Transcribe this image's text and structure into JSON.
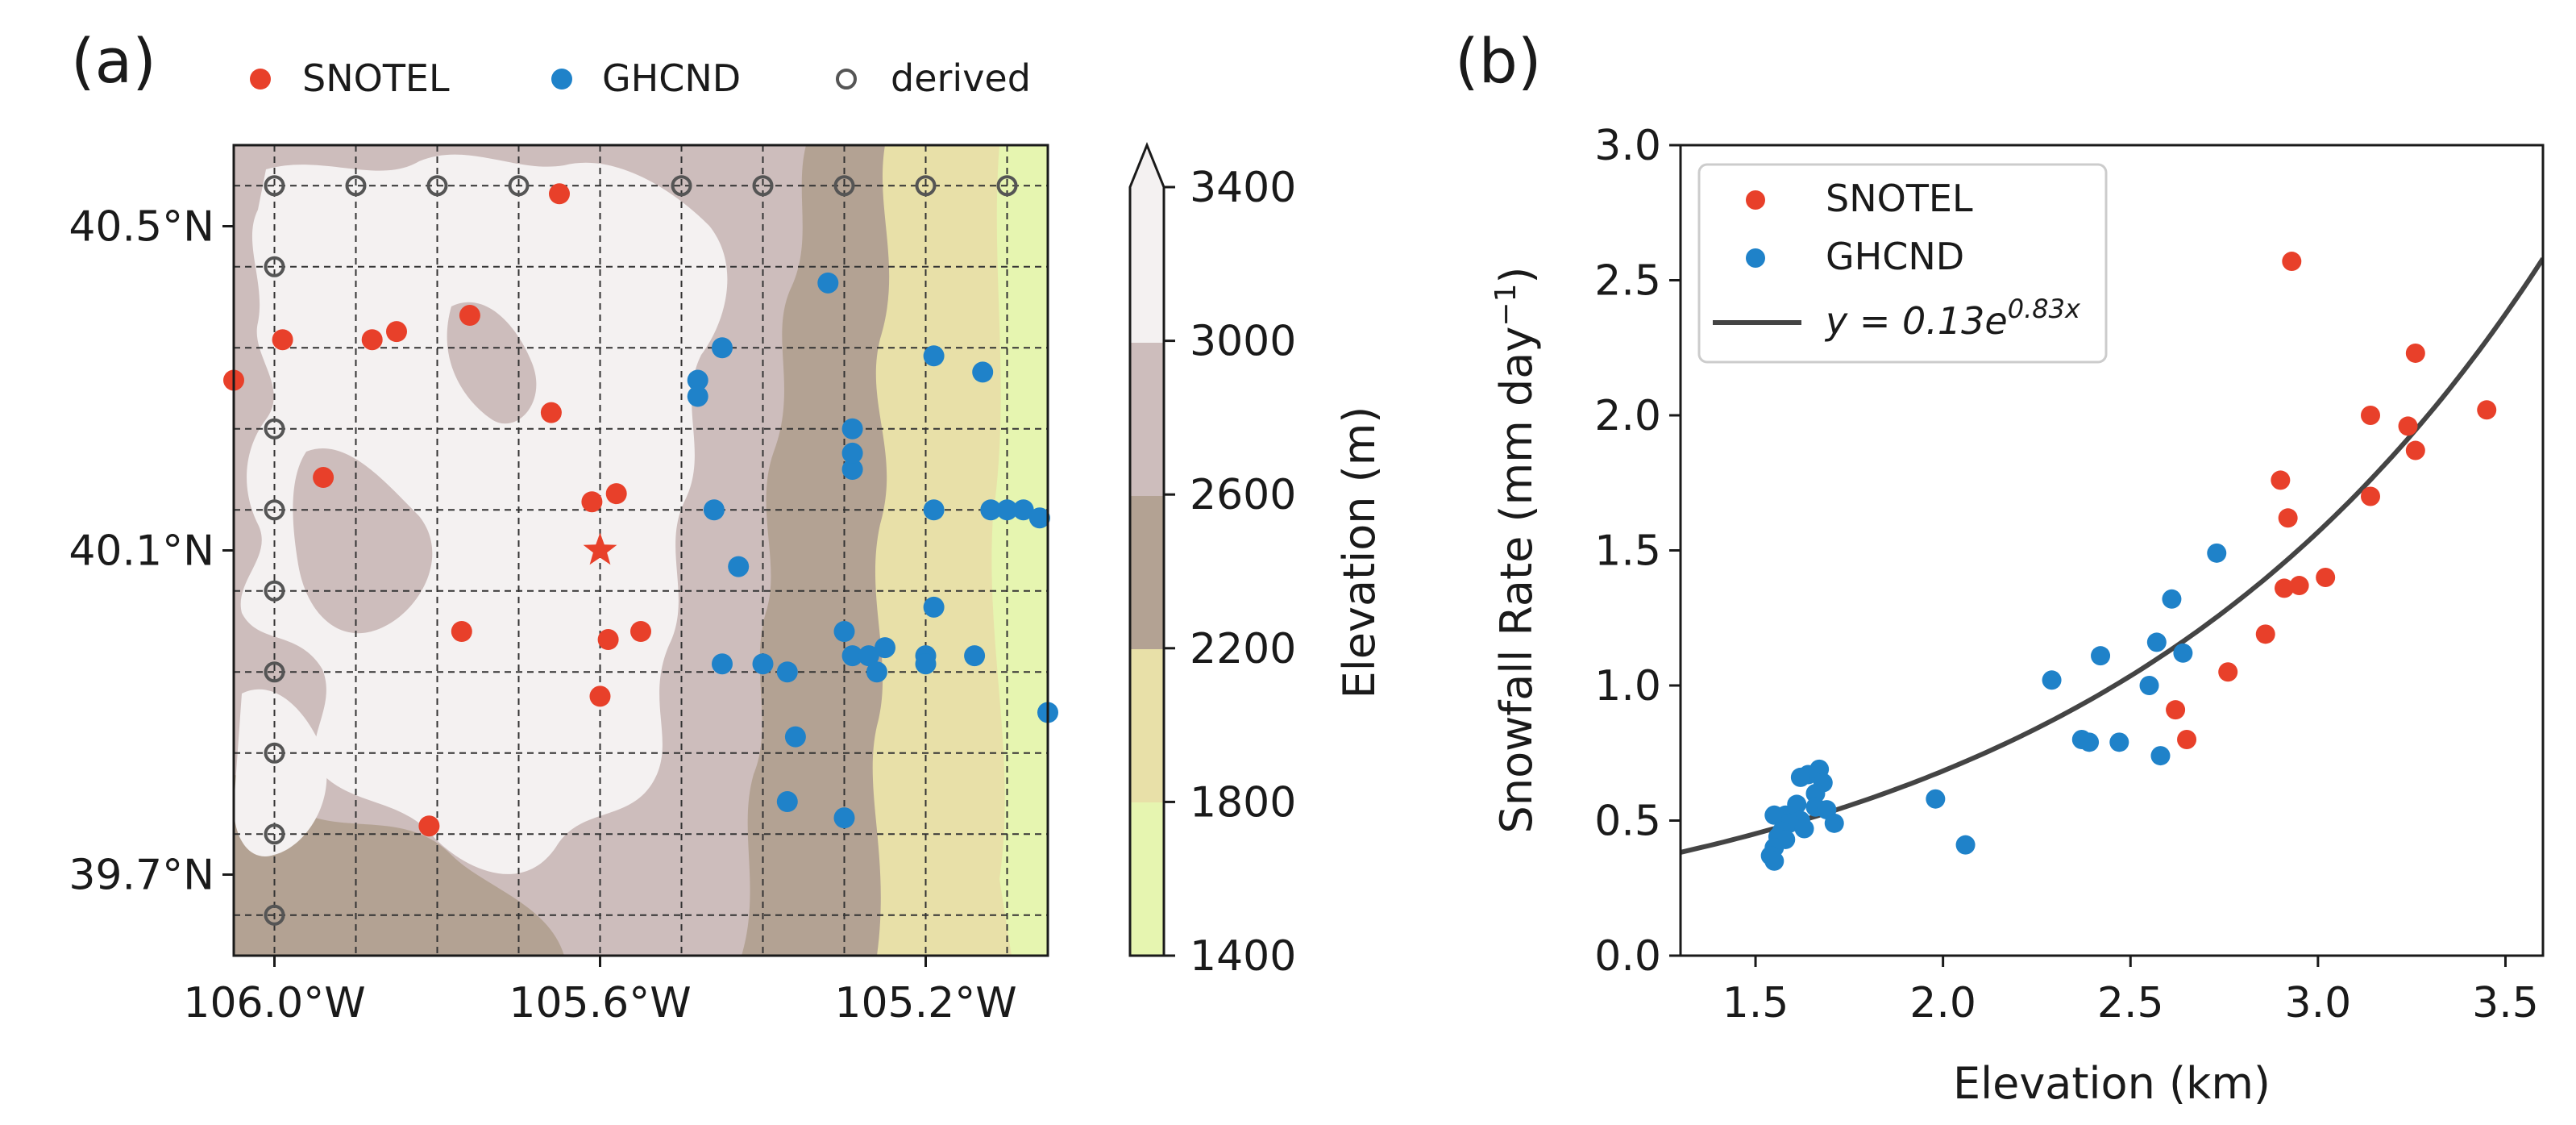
{
  "colors": {
    "snotel": "#e8402a",
    "ghcnd": "#1f82c9",
    "derived_edge": "#555555",
    "fit": "#444444",
    "elev_bands": [
      "#e6f5b0",
      "#e8e0a8",
      "#b3a293",
      "#cdbdbc",
      "#f4f1f1"
    ]
  },
  "chart_data": [
    {
      "type": "scatter",
      "panel_label": "(a)",
      "legend": [
        "SNOTEL",
        "GHCND",
        "derived"
      ],
      "xlabel": "",
      "ylabel": "",
      "xlim": [
        -106.05,
        -105.05
      ],
      "ylim": [
        39.6,
        40.6
      ],
      "xticks": [
        {
          "value": -106.0,
          "label": "106.0°W"
        },
        {
          "value": -105.6,
          "label": "105.6°W"
        },
        {
          "value": -105.2,
          "label": "105.2°W"
        }
      ],
      "yticks": [
        {
          "value": 40.5,
          "label": "40.5°N"
        },
        {
          "value": 40.1,
          "label": "40.1°N"
        },
        {
          "value": 39.7,
          "label": "39.7°N"
        }
      ],
      "grid": true,
      "grid_step": 0.1,
      "colorbar": {
        "label": "Elevation (m)",
        "ticks": [
          "1400",
          "1800",
          "2200",
          "2600",
          "3000",
          "3400"
        ],
        "range": [
          1400,
          3400
        ],
        "extend": "max"
      },
      "star": {
        "lon": -105.6,
        "lat": 40.1
      },
      "snotel": [
        [
          -105.65,
          40.54
        ],
        [
          -105.99,
          40.36
        ],
        [
          -105.88,
          40.36
        ],
        [
          -105.85,
          40.37
        ],
        [
          -105.76,
          40.39
        ],
        [
          -106.05,
          40.31
        ],
        [
          -105.66,
          40.27
        ],
        [
          -105.94,
          40.19
        ],
        [
          -105.61,
          40.16
        ],
        [
          -105.58,
          40.17
        ],
        [
          -105.6,
          39.92
        ],
        [
          -105.77,
          40.0
        ],
        [
          -105.59,
          39.99
        ],
        [
          -105.55,
          40.0
        ],
        [
          -105.81,
          39.76
        ]
      ],
      "ghcnd": [
        [
          -105.32,
          40.43
        ],
        [
          -105.45,
          40.35
        ],
        [
          -105.48,
          40.31
        ],
        [
          -105.48,
          40.29
        ],
        [
          -105.29,
          40.25
        ],
        [
          -105.29,
          40.2
        ],
        [
          -105.29,
          40.22
        ],
        [
          -105.19,
          40.34
        ],
        [
          -105.13,
          40.32
        ],
        [
          -105.19,
          40.15
        ],
        [
          -105.12,
          40.15
        ],
        [
          -105.1,
          40.15
        ],
        [
          -105.08,
          40.15
        ],
        [
          -105.46,
          40.15
        ],
        [
          -105.43,
          40.08
        ],
        [
          -105.45,
          39.96
        ],
        [
          -105.4,
          39.96
        ],
        [
          -105.37,
          39.95
        ],
        [
          -105.36,
          39.87
        ],
        [
          -105.37,
          39.79
        ],
        [
          -105.19,
          40.03
        ],
        [
          -105.3,
          40.0
        ],
        [
          -105.29,
          39.97
        ],
        [
          -105.27,
          39.97
        ],
        [
          -105.26,
          39.95
        ],
        [
          -105.25,
          39.98
        ],
        [
          -105.2,
          39.97
        ],
        [
          -105.2,
          39.96
        ],
        [
          -105.14,
          39.97
        ],
        [
          -105.05,
          39.9
        ],
        [
          -105.3,
          39.77
        ],
        [
          -105.06,
          40.14
        ]
      ],
      "derived": [
        [
          -106.0,
          40.55
        ],
        [
          -105.9,
          40.55
        ],
        [
          -105.8,
          40.55
        ],
        [
          -105.7,
          40.55
        ],
        [
          -105.5,
          40.55
        ],
        [
          -105.4,
          40.55
        ],
        [
          -105.3,
          40.55
        ],
        [
          -105.2,
          40.55
        ],
        [
          -105.1,
          40.55
        ],
        [
          -106.0,
          40.45
        ],
        [
          -106.0,
          40.25
        ],
        [
          -106.0,
          40.15
        ],
        [
          -106.0,
          40.05
        ],
        [
          -106.0,
          39.95
        ],
        [
          -106.0,
          39.85
        ],
        [
          -106.0,
          39.75
        ],
        [
          -106.0,
          39.65
        ]
      ]
    },
    {
      "type": "scatter",
      "panel_label": "(b)",
      "title": "",
      "xlabel": "Elevation (km)",
      "ylabel": "Snowfall Rate (mm day",
      "ylabel_sup": "−1",
      "ylabel_close": ")",
      "xlim": [
        1.3,
        3.6
      ],
      "ylim": [
        0.0,
        3.0
      ],
      "xticks": [
        "1.5",
        "2.0",
        "2.5",
        "3.0",
        "3.5"
      ],
      "yticks": [
        "0.0",
        "0.5",
        "1.0",
        "1.5",
        "2.0",
        "2.5",
        "3.0"
      ],
      "grid": false,
      "legend_position": "top-left",
      "fit": {
        "a": 0.13,
        "b": 0.83,
        "label_pre": "y = 0.13e",
        "label_exp": "0.83x"
      },
      "series": [
        {
          "name": "SNOTEL",
          "points": [
            [
              2.93,
              2.57
            ],
            [
              3.26,
              2.23
            ],
            [
              3.45,
              2.02
            ],
            [
              3.14,
              2.0
            ],
            [
              3.24,
              1.96
            ],
            [
              3.26,
              1.87
            ],
            [
              2.9,
              1.76
            ],
            [
              3.14,
              1.7
            ],
            [
              2.92,
              1.62
            ],
            [
              3.02,
              1.4
            ],
            [
              2.95,
              1.37
            ],
            [
              2.91,
              1.36
            ],
            [
              2.86,
              1.19
            ],
            [
              2.76,
              1.05
            ],
            [
              2.62,
              0.91
            ],
            [
              2.65,
              0.8
            ]
          ]
        },
        {
          "name": "GHCND",
          "points": [
            [
              2.73,
              1.49
            ],
            [
              2.61,
              1.32
            ],
            [
              2.57,
              1.16
            ],
            [
              2.64,
              1.12
            ],
            [
              2.42,
              1.11
            ],
            [
              2.29,
              1.02
            ],
            [
              2.55,
              1.0
            ],
            [
              2.37,
              0.8
            ],
            [
              2.39,
              0.79
            ],
            [
              2.47,
              0.79
            ],
            [
              2.58,
              0.74
            ],
            [
              1.98,
              0.58
            ],
            [
              2.06,
              0.41
            ],
            [
              1.67,
              0.69
            ],
            [
              1.64,
              0.67
            ],
            [
              1.62,
              0.66
            ],
            [
              1.68,
              0.64
            ],
            [
              1.66,
              0.6
            ],
            [
              1.61,
              0.56
            ],
            [
              1.66,
              0.55
            ],
            [
              1.69,
              0.54
            ],
            [
              1.58,
              0.52
            ],
            [
              1.55,
              0.52
            ],
            [
              1.62,
              0.5
            ],
            [
              1.59,
              0.49
            ],
            [
              1.71,
              0.49
            ],
            [
              1.63,
              0.47
            ],
            [
              1.57,
              0.46
            ],
            [
              1.56,
              0.44
            ],
            [
              1.58,
              0.43
            ],
            [
              1.55,
              0.4
            ],
            [
              1.54,
              0.37
            ],
            [
              1.55,
              0.35
            ]
          ]
        }
      ]
    }
  ]
}
